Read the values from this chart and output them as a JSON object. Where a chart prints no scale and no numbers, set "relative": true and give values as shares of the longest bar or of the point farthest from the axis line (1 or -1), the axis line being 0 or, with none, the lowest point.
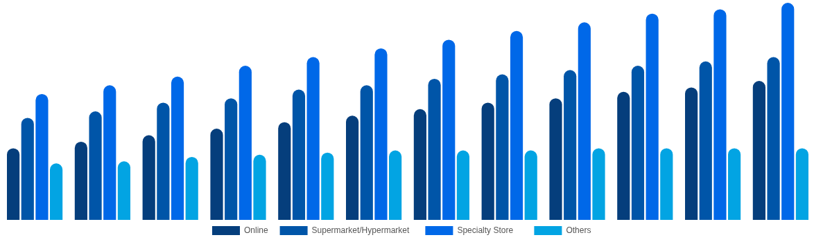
{
  "chart_data": {
    "type": "bar",
    "relative": true,
    "categories": [
      null,
      null,
      null,
      null,
      null,
      null,
      null,
      null,
      null,
      null,
      null,
      null
    ],
    "series": [
      {
        "name": "Online",
        "color": "#053e7c",
        "values": [
          0.33,
          0.36,
          0.39,
          0.42,
          0.45,
          0.48,
          0.51,
          0.54,
          0.56,
          0.59,
          0.61,
          0.64
        ]
      },
      {
        "name": "Supermarket/Hypermarket",
        "color": "#0055a8",
        "values": [
          0.47,
          0.5,
          0.54,
          0.56,
          0.6,
          0.62,
          0.65,
          0.67,
          0.69,
          0.71,
          0.73,
          0.75
        ]
      },
      {
        "name": "Specialty Store",
        "color": "#0068e8",
        "values": [
          0.58,
          0.62,
          0.66,
          0.71,
          0.75,
          0.79,
          0.83,
          0.87,
          0.91,
          0.95,
          0.97,
          1
        ]
      },
      {
        "name": "Others",
        "color": "#02a4e3",
        "values": [
          0.26,
          0.27,
          0.29,
          0.3,
          0.31,
          0.32,
          0.32,
          0.32,
          0.33,
          0.33,
          0.33,
          0.33
        ]
      }
    ],
    "legend": "bottom"
  }
}
